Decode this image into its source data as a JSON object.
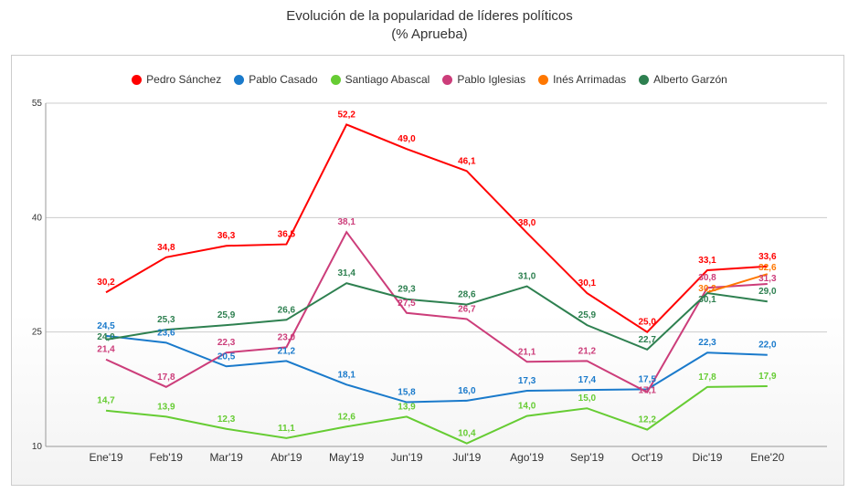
{
  "chart_data": {
    "type": "line",
    "title": "Evolución de la popularidad de líderes políticos",
    "subtitle": "(% Aprueba)",
    "categories": [
      "Ene'19",
      "Feb'19",
      "Mar'19",
      "Abr'19",
      "May'19",
      "Jun'19",
      "Jul'19",
      "Ago'19",
      "Sep'19",
      "Oct'19",
      "Dic'19",
      "Ene'20"
    ],
    "ylim": [
      10,
      55
    ],
    "yticks": [
      10,
      25,
      40,
      55
    ],
    "grid": true,
    "legend": "top",
    "series": [
      {
        "name": "Pedro Sánchez",
        "color": "#ff0000",
        "values": [
          30.2,
          34.8,
          36.3,
          36.5,
          52.2,
          49.0,
          46.1,
          38.0,
          30.1,
          25.0,
          33.1,
          33.6
        ]
      },
      {
        "name": "Pablo Casado",
        "color": "#1a7acb",
        "values": [
          24.5,
          23.6,
          20.5,
          21.2,
          18.1,
          15.8,
          16.0,
          17.3,
          17.4,
          17.5,
          22.3,
          22.0
        ]
      },
      {
        "name": "Santiago Abascal",
        "color": "#66cc33",
        "values": [
          14.7,
          13.9,
          12.3,
          11.1,
          12.6,
          13.9,
          10.4,
          14.0,
          15.0,
          12.2,
          17.8,
          17.9
        ]
      },
      {
        "name": "Pablo Iglesias",
        "color": "#cc3d7a",
        "values": [
          21.4,
          17.8,
          22.3,
          23.0,
          38.1,
          27.5,
          26.7,
          21.1,
          21.2,
          17.1,
          30.8,
          31.3
        ]
      },
      {
        "name": "Inés Arrimadas",
        "color": "#ff7700",
        "values": [
          null,
          null,
          null,
          null,
          null,
          null,
          null,
          null,
          null,
          null,
          30.2,
          32.6
        ]
      },
      {
        "name": "Alberto Garzón",
        "color": "#2e8050",
        "values": [
          24.0,
          25.3,
          25.9,
          26.6,
          31.4,
          29.3,
          28.6,
          31.0,
          25.9,
          22.7,
          30.1,
          29.0
        ]
      }
    ]
  }
}
